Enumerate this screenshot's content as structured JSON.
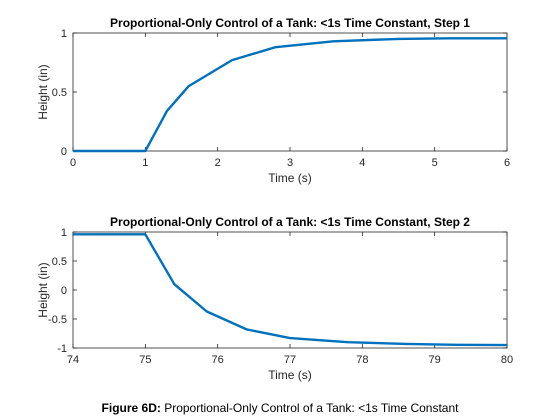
{
  "chart_data": [
    {
      "type": "line",
      "title": "Proportional-Only Control of a Tank: <1s Time Constant, Step 1",
      "xlabel": "Time (s)",
      "ylabel": "Height (in)",
      "xlim": [
        0,
        6
      ],
      "ylim": [
        0,
        1
      ],
      "xticks": [
        "0",
        "1",
        "2",
        "3",
        "4",
        "5",
        "6"
      ],
      "yticks": [
        "0",
        "0.5",
        "1"
      ],
      "grid": false,
      "series": [
        {
          "color": "#0072BD",
          "x": [
            0,
            1,
            1.3,
            1.6,
            2.2,
            2.8,
            3.6,
            4.5,
            5.2,
            6
          ],
          "y": [
            0,
            0,
            0.34,
            0.55,
            0.77,
            0.88,
            0.93,
            0.95,
            0.955,
            0.955
          ]
        }
      ]
    },
    {
      "type": "line",
      "title": "Proportional-Only Control of a Tank: <1s Time Constant, Step 2",
      "xlabel": "Time (s)",
      "ylabel": "Height (in)",
      "xlim": [
        74,
        80
      ],
      "ylim": [
        -1,
        1
      ],
      "xticks": [
        "74",
        "75",
        "76",
        "77",
        "78",
        "79",
        "80"
      ],
      "yticks": [
        "-1",
        "-0.5",
        "0",
        "0.5",
        "1"
      ],
      "grid": false,
      "series": [
        {
          "color": "#0072BD",
          "x": [
            74,
            75,
            75.4,
            75.85,
            76.4,
            77,
            77.8,
            78.6,
            79.3,
            80
          ],
          "y": [
            0.96,
            0.96,
            0.1,
            -0.37,
            -0.68,
            -0.83,
            -0.9,
            -0.93,
            -0.945,
            -0.95
          ]
        }
      ]
    }
  ],
  "caption": {
    "label": "Figure 6D:",
    "text": " Proportional-Only Control of a Tank: <1s Time Constant"
  }
}
